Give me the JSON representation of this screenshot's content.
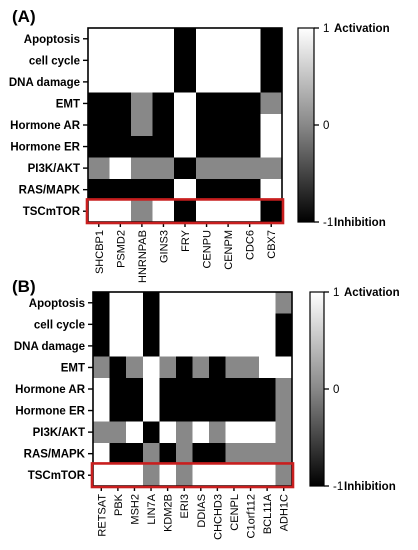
{
  "colors": {
    "scale": {
      "-1": "#000000",
      "-0.5": "#444444",
      "0": "#888888",
      "0.5": "#c8c8c8",
      "1": "#ffffff"
    },
    "highlight": "#c81e1e"
  },
  "chart_data": [
    {
      "type": "heatmap",
      "panel_label": "(A)",
      "rows": [
        "Apoptosis",
        "cell cycle",
        "DNA damage",
        "EMT",
        "Hormone AR",
        "Hormone ER",
        "PI3K/AKT",
        "RAS/MAPK",
        "TSCmTOR"
      ],
      "columns": [
        "SHCBP1",
        "PSMD2",
        "HNRNPAB",
        "GINS3",
        "FRY",
        "CENPU",
        "CENPM",
        "CDC6",
        "CBX7"
      ],
      "values": [
        [
          1,
          1,
          1,
          1,
          -1,
          1,
          1,
          1,
          -1
        ],
        [
          1,
          1,
          1,
          1,
          -1,
          1,
          1,
          1,
          -1
        ],
        [
          1,
          1,
          1,
          1,
          -1,
          1,
          1,
          1,
          -1
        ],
        [
          -1,
          -1,
          0,
          -1,
          1,
          -1,
          -1,
          -1,
          0
        ],
        [
          -1,
          -1,
          0,
          -1,
          1,
          -1,
          -1,
          -1,
          1
        ],
        [
          -1,
          -1,
          -1,
          -1,
          1,
          -1,
          -1,
          -1,
          1
        ],
        [
          0,
          1,
          0,
          0,
          -1,
          0,
          0,
          0,
          0
        ],
        [
          -1,
          -1,
          -1,
          -1,
          1,
          -1,
          -1,
          -1,
          1
        ],
        [
          1,
          1,
          0,
          1,
          -1,
          1,
          1,
          1,
          -1
        ]
      ],
      "highlight_row": "TSCmTOR",
      "colorbar": {
        "ticks": [
          1,
          0,
          -1
        ],
        "tick_labels": [
          "1",
          "0",
          "-1"
        ],
        "top_label": "Activation",
        "bottom_label": "Inhibition"
      }
    },
    {
      "type": "heatmap",
      "panel_label": "(B)",
      "rows": [
        "Apoptosis",
        "cell cycle",
        "DNA damage",
        "EMT",
        "Hormone AR",
        "Hormone ER",
        "PI3K/AKT",
        "RAS/MAPK",
        "TSCmTOR"
      ],
      "columns": [
        "RETSAT",
        "PBK",
        "MSH2",
        "LIN7A",
        "KDM2B",
        "ERI3",
        "DDIAS",
        "CHCHD3",
        "CENPL",
        "C1orf112",
        "BCL11A",
        "ADH1C"
      ],
      "values": [
        [
          -1,
          1,
          1,
          -1,
          1,
          1,
          1,
          1,
          1,
          1,
          1,
          0
        ],
        [
          -1,
          1,
          1,
          -1,
          1,
          1,
          1,
          1,
          1,
          1,
          1,
          -1
        ],
        [
          -1,
          1,
          1,
          -1,
          1,
          1,
          1,
          1,
          1,
          1,
          1,
          -1
        ],
        [
          0,
          -1,
          0,
          1,
          0,
          -1,
          0,
          -1,
          0,
          0,
          1,
          1
        ],
        [
          1,
          -1,
          -1,
          1,
          -1,
          -1,
          -1,
          -1,
          -1,
          -1,
          -1,
          0
        ],
        [
          1,
          -1,
          -1,
          1,
          -1,
          -1,
          -1,
          -1,
          -1,
          -1,
          -1,
          0
        ],
        [
          0,
          0,
          1,
          -1,
          1,
          0,
          1,
          0,
          1,
          1,
          1,
          0
        ],
        [
          1,
          -1,
          -1,
          0,
          -1,
          0,
          -1,
          -1,
          0,
          0,
          0,
          0
        ],
        [
          1,
          1,
          1,
          0,
          1,
          0,
          1,
          1,
          1,
          1,
          1,
          0
        ]
      ],
      "highlight_row": "TSCmTOR",
      "colorbar": {
        "ticks": [
          1,
          0,
          -1
        ],
        "tick_labels": [
          "1",
          "0",
          "-1"
        ],
        "top_label": "Activation",
        "bottom_label": "Inhibition"
      }
    }
  ]
}
